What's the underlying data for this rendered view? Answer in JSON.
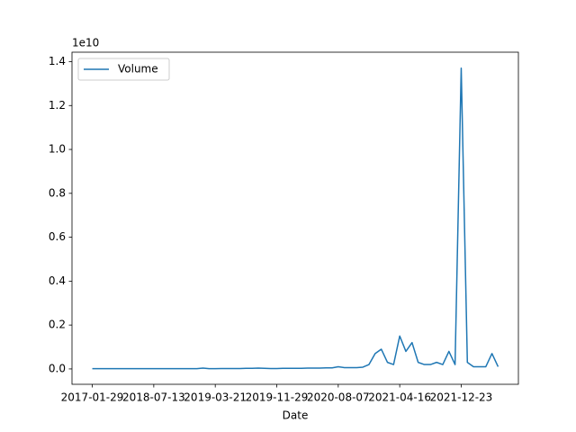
{
  "chart_data": {
    "type": "line",
    "x_label": "Date",
    "y_offset_label": "1e10",
    "categories": [
      "2017-01-29",
      null,
      null,
      null,
      null,
      null,
      null,
      null,
      null,
      null,
      "2018-07-13",
      null,
      null,
      null,
      null,
      null,
      null,
      null,
      null,
      null,
      "2019-03-21",
      null,
      null,
      null,
      null,
      null,
      null,
      null,
      null,
      null,
      "2019-11-29",
      null,
      null,
      null,
      null,
      null,
      null,
      null,
      null,
      null,
      "2020-08-07",
      null,
      null,
      null,
      null,
      null,
      null,
      null,
      null,
      null,
      "2021-04-16",
      null,
      null,
      null,
      null,
      null,
      null,
      null,
      null,
      null,
      "2021-12-23",
      null,
      null,
      null,
      null,
      null,
      null
    ],
    "series": [
      {
        "name": "Volume",
        "color": "#1f77b4",
        "values": [
          0.001,
          0.001,
          0.001,
          0.001,
          0.001,
          0.001,
          0.001,
          0.001,
          0.001,
          0.001,
          0.001,
          0.001,
          0.001,
          0.001,
          0.001,
          0.001,
          0.001,
          0.001,
          0.004,
          0.001,
          0.001,
          0.002,
          0.002,
          0.002,
          0.002,
          0.003,
          0.003,
          0.004,
          0.003,
          0.002,
          0.002,
          0.003,
          0.003,
          0.003,
          0.003,
          0.004,
          0.004,
          0.004,
          0.005,
          0.005,
          0.01,
          0.006,
          0.006,
          0.006,
          0.008,
          0.02,
          0.07,
          0.09,
          0.03,
          0.02,
          0.15,
          0.08,
          0.12,
          0.03,
          0.02,
          0.02,
          0.03,
          0.02,
          0.08,
          0.02,
          1.37,
          0.03,
          0.01,
          0.01,
          0.01,
          0.07,
          0.01
        ]
      }
    ],
    "ylim": [
      -0.07,
      1.443
    ],
    "yticks": [
      {
        "value": 0,
        "label": "0.0"
      },
      0.2,
      0.4,
      0.6,
      0.8,
      {
        "value": 1,
        "label": "1.0"
      },
      1.2,
      1.4
    ],
    "legend": "upper left"
  }
}
